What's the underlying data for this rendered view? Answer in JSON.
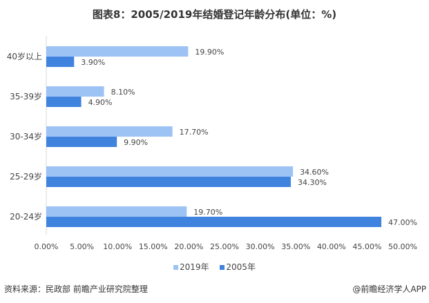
{
  "chart_data": {
    "type": "bar",
    "orientation": "horizontal",
    "title": "图表8：2005/2019年结婚登记年龄分布(单位：%)",
    "categories": [
      "40岁以上",
      "35-39岁",
      "30-34岁",
      "25-29岁",
      "20-24岁"
    ],
    "series": [
      {
        "name": "2019年",
        "values": [
          19.9,
          8.1,
          17.7,
          34.6,
          19.7
        ],
        "labels": [
          "19.90%",
          "8.10%",
          "17.70%",
          "34.60%",
          "19.70%"
        ],
        "color": "#9DC3F5"
      },
      {
        "name": "2005年",
        "values": [
          3.9,
          4.9,
          9.9,
          34.3,
          47.0
        ],
        "labels": [
          "3.90%",
          "4.90%",
          "9.90%",
          "34.30%",
          "47.00%"
        ],
        "color": "#3F83DE"
      }
    ],
    "xlim": [
      0,
      50
    ],
    "xticks": [
      "0.00%",
      "5.00%",
      "10.00%",
      "15.00%",
      "20.00%",
      "25.00%",
      "30.00%",
      "35.00%",
      "40.00%",
      "45.00%",
      "50.00%"
    ],
    "grid": false,
    "legend": "bottom"
  },
  "footer": {
    "source": "资料来源：民政部 前瞻产业研究院整理",
    "brand": "@前瞻经济学人APP"
  }
}
